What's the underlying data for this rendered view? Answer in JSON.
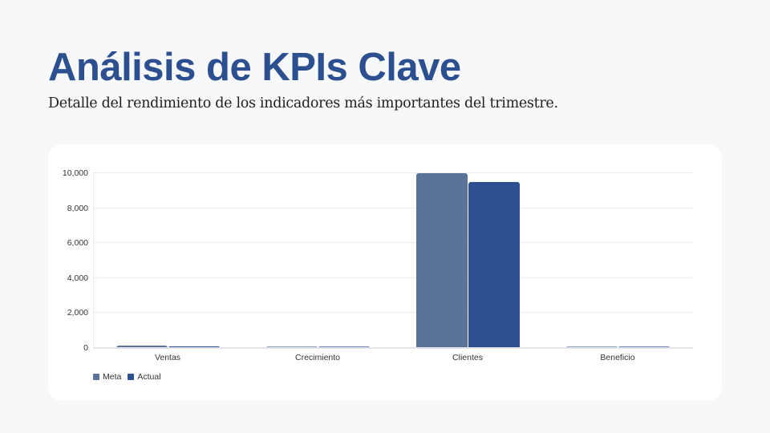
{
  "header": {
    "title": "Análisis de KPIs Clave",
    "subtitle": "Detalle del rendimiento de los indicadores más importantes del trimestre."
  },
  "colors": {
    "title": "#2c4f8f",
    "meta": "#5b7399",
    "actual": "#2c4f8f",
    "background": "#f7f8fa",
    "card": "#ffffff"
  },
  "chart_data": {
    "type": "bar",
    "title": "",
    "xlabel": "",
    "ylabel": "",
    "categories": [
      "Ventas",
      "Crecimiento",
      "Clientes",
      "Beneficio"
    ],
    "series": [
      {
        "name": "Meta",
        "color": "#5b7399",
        "values": [
          120,
          15,
          10000,
          25
        ]
      },
      {
        "name": "Actual",
        "color": "#2c4f8f",
        "values": [
          110,
          12,
          9500,
          22
        ]
      }
    ],
    "ylim": [
      0,
      10000
    ],
    "yticks": [
      0,
      2000,
      4000,
      6000,
      8000,
      10000
    ],
    "ytick_labels": [
      "0",
      "2,000",
      "4,000",
      "6,000",
      "8,000",
      "10,000"
    ],
    "grid": true,
    "legend_position": "bottom-left",
    "legend": [
      "Meta",
      "Actual"
    ]
  }
}
